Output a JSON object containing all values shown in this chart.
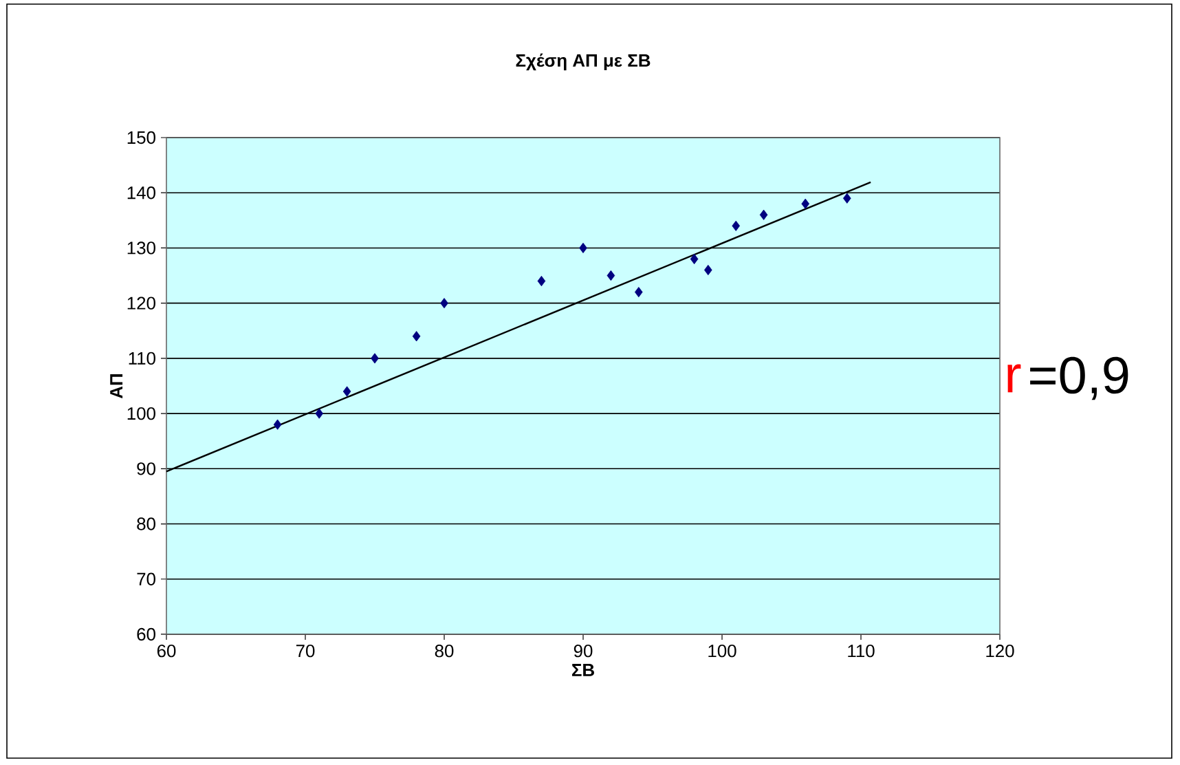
{
  "chart_data": {
    "type": "scatter",
    "title": "Σχέση ΑΠ με ΣΒ",
    "xlabel": "ΣΒ",
    "ylabel": "ΑΠ",
    "xlim": [
      60,
      120
    ],
    "xticks": [
      60,
      70,
      80,
      90,
      100,
      110,
      120
    ],
    "ylim": [
      60,
      150
    ],
    "yticks": [
      60,
      70,
      80,
      90,
      100,
      110,
      120,
      130,
      140,
      150
    ],
    "grid": "y",
    "series": [
      {
        "marker": "diamond",
        "color": "#000080",
        "x": [
          68,
          71,
          73,
          75,
          78,
          80,
          87,
          90,
          92,
          94,
          98,
          99,
          101,
          103,
          106,
          109
        ],
        "values": [
          98,
          100,
          104,
          110,
          114,
          120,
          124,
          130,
          125,
          122,
          128,
          126,
          134,
          136,
          138,
          139
        ]
      },
      {
        "type": "line",
        "marker": "none",
        "color": "#000000",
        "x": [
          60,
          110.7
        ],
        "values": [
          89.5,
          141.9
        ]
      }
    ],
    "annotations": [
      "r",
      "=0,9"
    ]
  }
}
